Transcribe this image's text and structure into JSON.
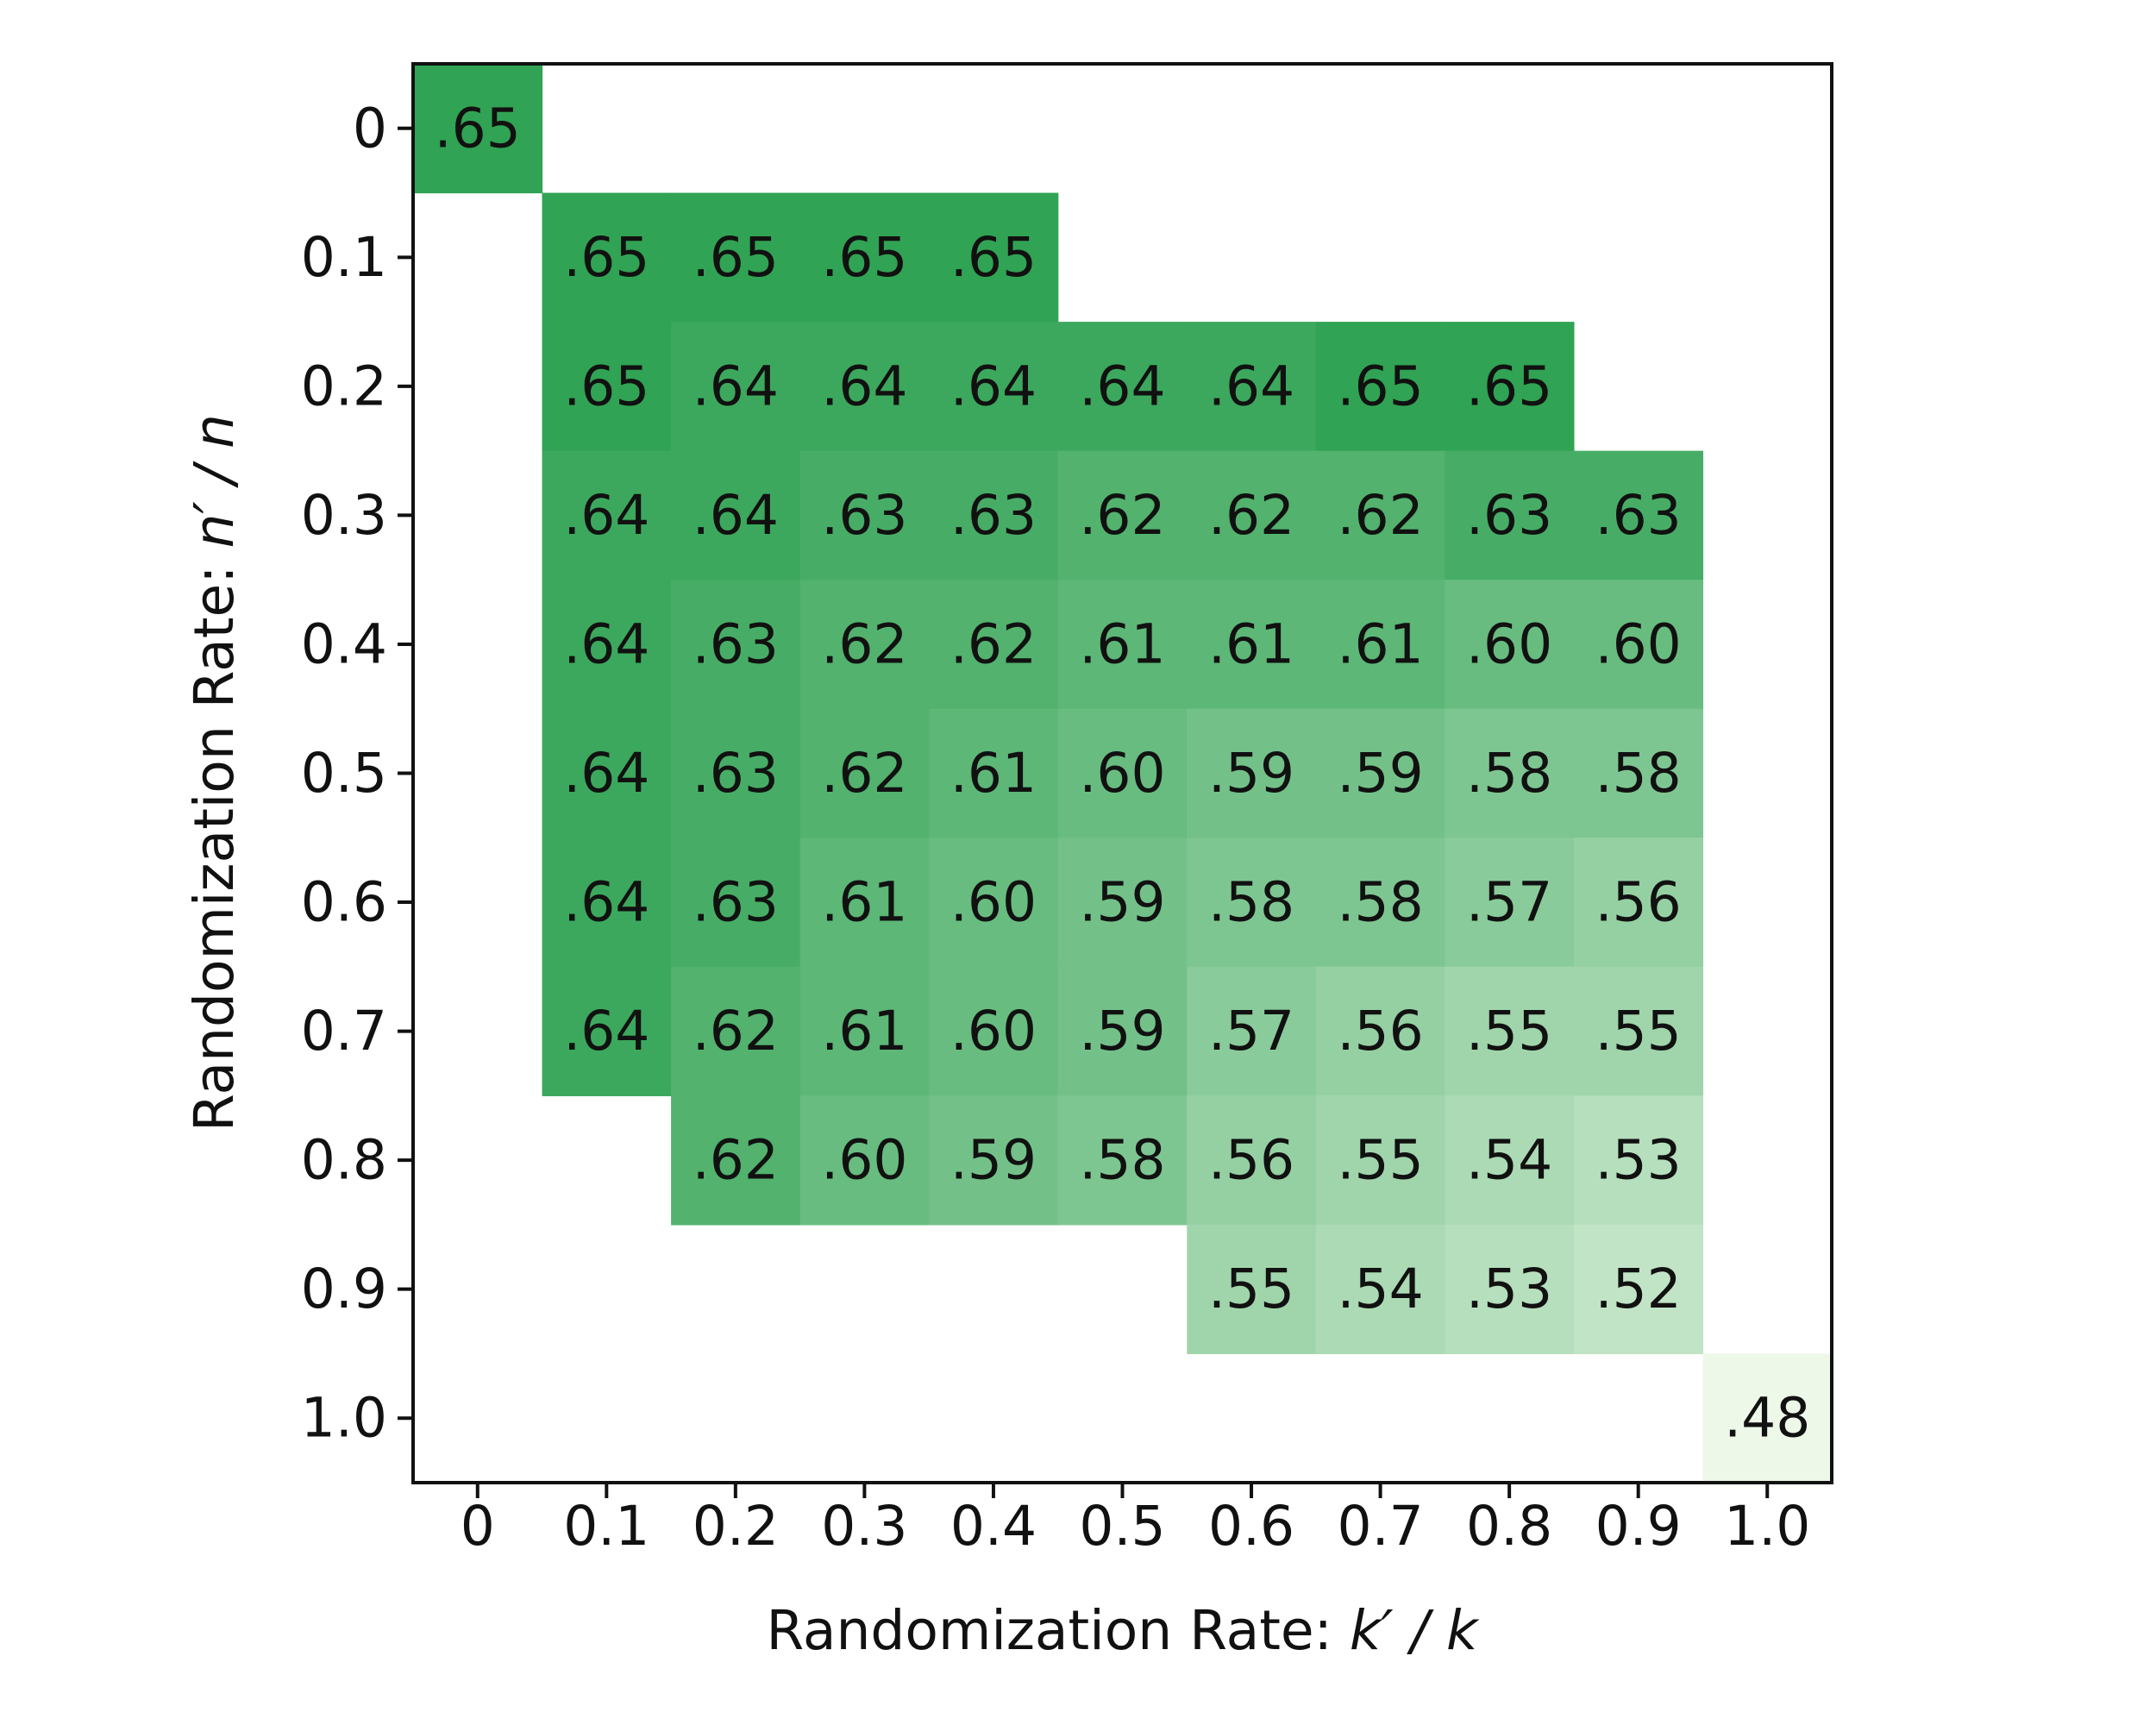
{
  "chart_data": {
    "type": "heatmap",
    "title": "",
    "xlabel": {
      "prefix": "Randomization Rate: ",
      "math": "k′ / k"
    },
    "ylabel": {
      "prefix": "Randomization Rate: ",
      "math": "n′ / n"
    },
    "x_categories": [
      "0",
      "0.1",
      "0.2",
      "0.3",
      "0.4",
      "0.5",
      "0.6",
      "0.7",
      "0.8",
      "0.9",
      "1.0"
    ],
    "y_categories": [
      "0",
      "0.1",
      "0.2",
      "0.3",
      "0.4",
      "0.5",
      "0.6",
      "0.7",
      "0.8",
      "0.9",
      "1.0"
    ],
    "value_format": "leading decimal point, two digits (e.g. .65)",
    "color_scale": {
      "min": 0.48,
      "max": 0.65,
      "low_color": "#edf8e9",
      "high_color": "#31a354"
    },
    "grid": false,
    "values": [
      [
        0.65,
        null,
        null,
        null,
        null,
        null,
        null,
        null,
        null,
        null,
        null
      ],
      [
        null,
        0.65,
        0.65,
        0.65,
        0.65,
        null,
        null,
        null,
        null,
        null,
        null
      ],
      [
        null,
        0.65,
        0.64,
        0.64,
        0.64,
        0.64,
        0.64,
        0.65,
        0.65,
        null,
        null
      ],
      [
        null,
        0.64,
        0.64,
        0.63,
        0.63,
        0.62,
        0.62,
        0.62,
        0.63,
        0.63,
        null
      ],
      [
        null,
        0.64,
        0.63,
        0.62,
        0.62,
        0.61,
        0.61,
        0.61,
        0.6,
        0.6,
        null
      ],
      [
        null,
        0.64,
        0.63,
        0.62,
        0.61,
        0.6,
        0.59,
        0.59,
        0.58,
        0.58,
        null
      ],
      [
        null,
        0.64,
        0.63,
        0.61,
        0.6,
        0.59,
        0.58,
        0.58,
        0.57,
        0.56,
        null
      ],
      [
        null,
        0.64,
        0.62,
        0.61,
        0.6,
        0.59,
        0.57,
        0.56,
        0.55,
        0.55,
        null
      ],
      [
        null,
        null,
        0.62,
        0.6,
        0.59,
        0.58,
        0.56,
        0.55,
        0.54,
        0.53,
        null
      ],
      [
        null,
        null,
        null,
        null,
        null,
        null,
        0.55,
        0.54,
        0.53,
        0.52,
        null
      ],
      [
        null,
        null,
        null,
        null,
        null,
        null,
        null,
        null,
        null,
        null,
        0.48
      ]
    ]
  }
}
